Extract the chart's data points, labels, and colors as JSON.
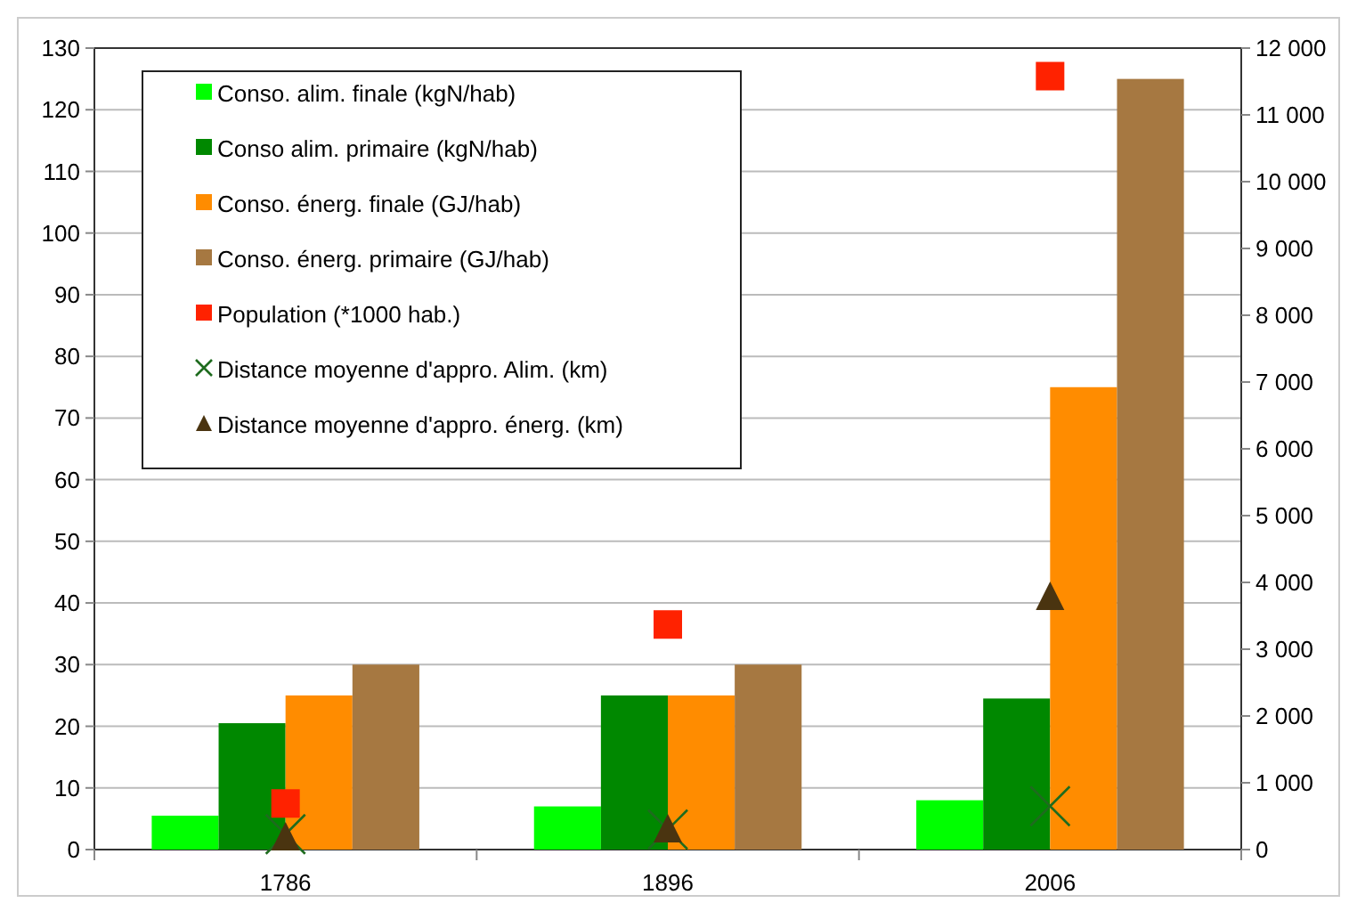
{
  "chart_data": {
    "type": "bar",
    "categories": [
      "1786",
      "1896",
      "2006"
    ],
    "series": [
      {
        "name": "Conso. alim. finale (kgN/hab)",
        "color": "#00ff00",
        "values": [
          5.5,
          7,
          8
        ]
      },
      {
        "name": "Conso alim. primaire (kgN/hab)",
        "color": "#008800",
        "values": [
          20.5,
          25,
          24.5
        ]
      },
      {
        "name": "Conso. énerg. finale (GJ/hab)",
        "color": "#ff8c00",
        "values": [
          25,
          25,
          75
        ]
      },
      {
        "name": "Conso. énerg. primaire (GJ/hab)",
        "color": "#a67841",
        "values": [
          30,
          30,
          125
        ]
      },
      {
        "name": "Population (*1000 hab.)",
        "type": "scatter",
        "marker": "square",
        "axis": "y2",
        "color": "#ff2200",
        "values": [
          690,
          3370,
          11580
        ]
      },
      {
        "name": "Distance moyenne d'appro. Alim. (km)",
        "type": "scatter",
        "marker": "cross",
        "axis": "y2",
        "color": "#1e6b1e",
        "values": [
          230,
          300,
          650
        ]
      },
      {
        "name": "Distance moyenne d'appro. énerg. (km)",
        "type": "scatter",
        "marker": "triangle",
        "axis": "y2",
        "color": "#4a3410",
        "values": [
          200,
          320,
          3800
        ]
      }
    ],
    "ylim": [
      0,
      130
    ],
    "yticks": [
      0,
      10,
      20,
      30,
      40,
      50,
      60,
      70,
      80,
      90,
      100,
      110,
      120,
      130
    ],
    "y2lim": [
      0,
      12000
    ],
    "y2ticks": [
      {
        "value": 0,
        "label": "0"
      },
      {
        "value": 1000,
        "label": "1 000"
      },
      {
        "value": 2000,
        "label": "2 000"
      },
      {
        "value": 3000,
        "label": "3 000"
      },
      {
        "value": 4000,
        "label": "4 000"
      },
      {
        "value": 5000,
        "label": "5 000"
      },
      {
        "value": 6000,
        "label": "6 000"
      },
      {
        "value": 7000,
        "label": "7 000"
      },
      {
        "value": 8000,
        "label": "8 000"
      },
      {
        "value": 9000,
        "label": "9 000"
      },
      {
        "value": 10000,
        "label": "10 000"
      },
      {
        "value": 11000,
        "label": "11 000"
      },
      {
        "value": 12000,
        "label": "12 000"
      }
    ],
    "grid": "y",
    "legend": "top left"
  }
}
